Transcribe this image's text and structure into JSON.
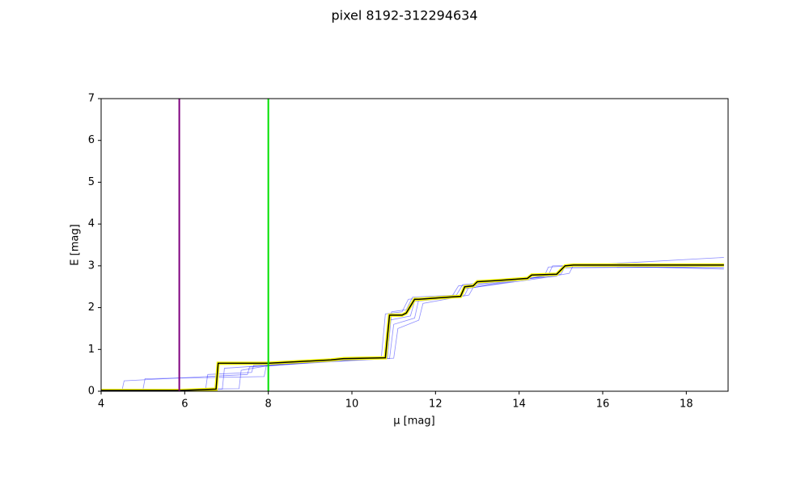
{
  "chart_data": {
    "type": "line",
    "title": "pixel 8192-312294634",
    "x_label": "μ [mag]",
    "y_label": "E [mag]",
    "xlim": [
      4,
      19
    ],
    "ylim": [
      0,
      7
    ],
    "xticks": [
      4,
      6,
      8,
      10,
      12,
      14,
      16,
      18
    ],
    "yticks": [
      0,
      1,
      2,
      3,
      4,
      5,
      6,
      7
    ],
    "grid": false,
    "vlines": [
      {
        "x": 5.87,
        "color": "#800080"
      },
      {
        "x": 8.0,
        "color": "#00e000"
      }
    ],
    "samples": {
      "color": "#0000ff",
      "lines": [
        {
          "x": [
            4,
            6.5,
            6.55,
            7.6,
            7.65,
            9.5,
            10.8,
            10.9,
            11.4,
            11.5,
            12.6,
            12.7,
            14.3,
            14.9,
            15.0,
            18.9
          ],
          "values": [
            0.02,
            0.05,
            0.4,
            0.45,
            0.62,
            0.72,
            0.78,
            1.7,
            1.8,
            2.15,
            2.25,
            2.45,
            2.7,
            2.75,
            2.95,
            2.98
          ]
        },
        {
          "x": [
            4,
            5.0,
            5.05,
            7.9,
            7.95,
            9.8,
            10.9,
            11.0,
            11.5,
            11.6,
            12.7,
            12.8,
            14.4,
            15.0,
            15.1,
            18.9
          ],
          "values": [
            0.02,
            0.03,
            0.3,
            0.35,
            0.6,
            0.75,
            0.78,
            1.6,
            1.75,
            2.2,
            2.3,
            2.5,
            2.72,
            2.8,
            2.98,
            2.95
          ]
        },
        {
          "x": [
            4,
            6.9,
            6.95,
            8.0,
            9.6,
            10.85,
            10.95,
            11.3,
            11.45,
            12.5,
            12.65,
            14.1,
            14.7,
            14.8,
            18.9
          ],
          "values": [
            0.02,
            0.05,
            0.55,
            0.62,
            0.74,
            0.8,
            1.9,
            1.95,
            2.25,
            2.3,
            2.55,
            2.68,
            2.78,
            3.0,
            3.05
          ]
        },
        {
          "x": [
            4,
            7.3,
            7.35,
            8.1,
            9.7,
            11.0,
            11.1,
            11.6,
            11.7,
            12.8,
            12.9,
            14.5,
            15.2,
            15.3,
            18.9
          ],
          "values": [
            0.03,
            0.06,
            0.5,
            0.63,
            0.73,
            0.79,
            1.5,
            1.7,
            2.1,
            2.3,
            2.48,
            2.7,
            2.82,
            3.02,
            2.92
          ]
        },
        {
          "x": [
            4,
            4.5,
            4.55,
            7.5,
            7.55,
            9.4,
            10.7,
            10.8,
            11.2,
            11.35,
            12.4,
            12.55,
            14.0,
            14.6,
            14.7,
            18.9
          ],
          "values": [
            0.02,
            0.02,
            0.25,
            0.4,
            0.58,
            0.7,
            0.77,
            1.85,
            1.9,
            2.2,
            2.28,
            2.52,
            2.66,
            2.75,
            2.97,
            3.2
          ]
        }
      ]
    },
    "series": [
      {
        "color": "#000000",
        "outline": "#ffff00",
        "x": [
          4,
          5.9,
          6.75,
          6.8,
          8.0,
          9.5,
          9.8,
          10.8,
          10.9,
          11.2,
          11.3,
          11.5,
          11.6,
          12.3,
          12.6,
          12.7,
          12.9,
          13.0,
          13.5,
          14.2,
          14.3,
          14.9,
          15.1,
          15.3,
          18.9
        ],
        "values": [
          0.02,
          0.02,
          0.05,
          0.67,
          0.67,
          0.75,
          0.78,
          0.8,
          1.82,
          1.82,
          1.87,
          2.2,
          2.2,
          2.25,
          2.27,
          2.5,
          2.52,
          2.62,
          2.65,
          2.7,
          2.78,
          2.8,
          3.0,
          3.02,
          3.02
        ]
      }
    ]
  }
}
